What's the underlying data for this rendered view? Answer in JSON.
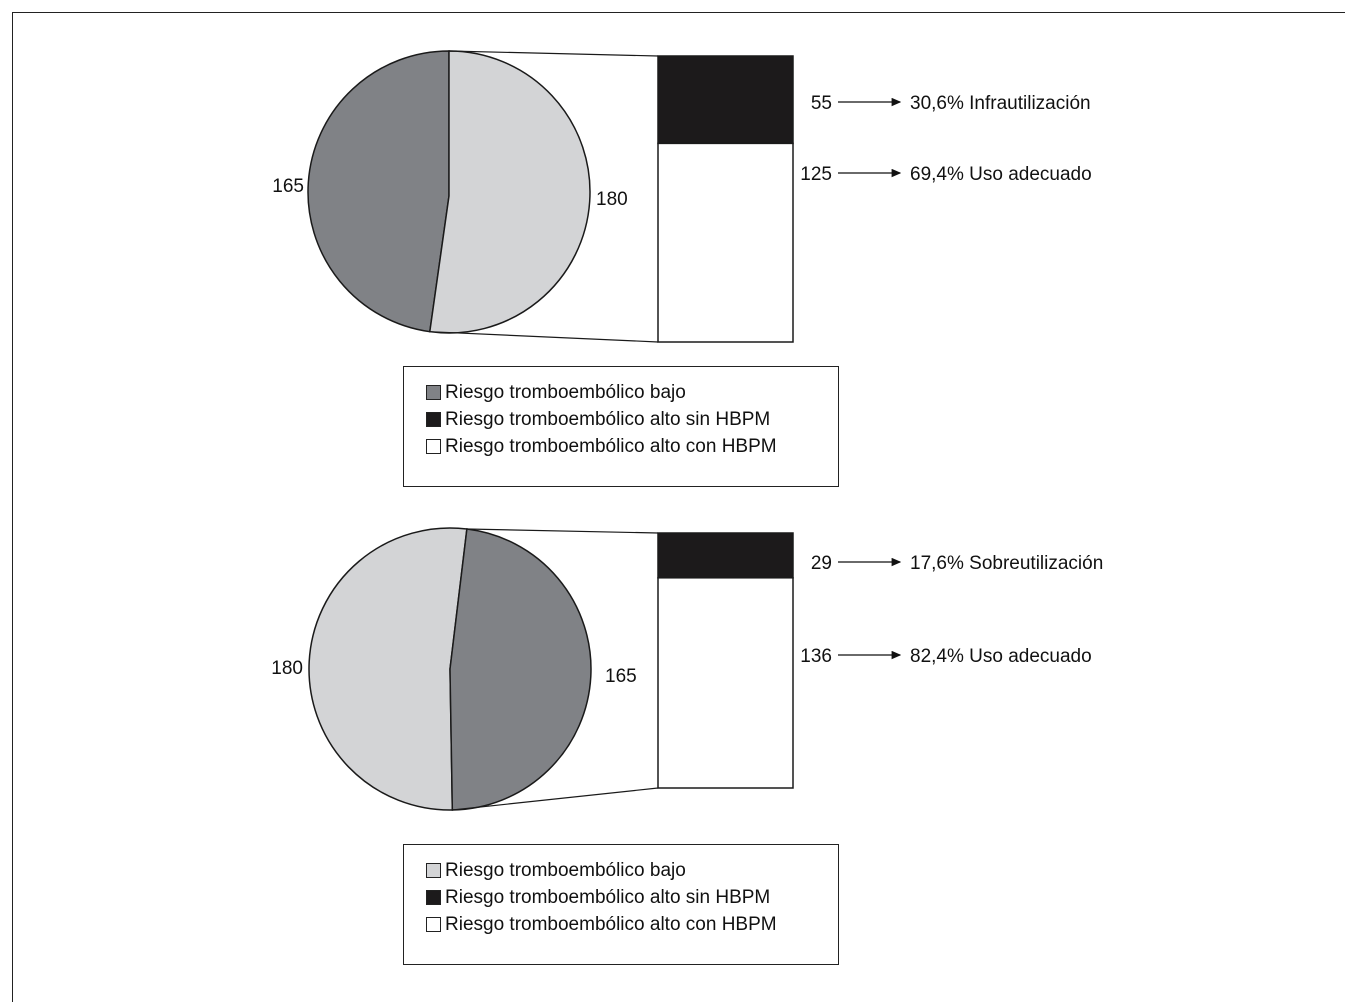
{
  "colors": {
    "dark_grey": "#808286",
    "light_grey": "#d3d4d6",
    "black": "#1c1a1b",
    "white": "#ffffff"
  },
  "chart_data": [
    {
      "type": "pie",
      "slices": [
        {
          "label": "165",
          "value": 165,
          "legend_index": 0,
          "color": "#808286"
        },
        {
          "label": "180",
          "value": 180,
          "color": "#d3d4d6",
          "exploded": true
        }
      ],
      "breakdown": [
        {
          "value": 55,
          "label": "55",
          "annotation": "30,6% Infrautilización",
          "color": "#1c1a1b",
          "legend_index": 1
        },
        {
          "value": 125,
          "label": "125",
          "annotation": "69,4% Uso adecuado",
          "color": "#ffffff",
          "legend_index": 2
        }
      ],
      "legend": [
        {
          "label": "Riesgo tromboembólico bajo",
          "color": "#808286"
        },
        {
          "label": "Riesgo tromboembólico alto sin HBPM",
          "color": "#1c1a1b"
        },
        {
          "label": "Riesgo tromboembólico alto con HBPM",
          "color": "#ffffff"
        }
      ]
    },
    {
      "type": "pie",
      "slices": [
        {
          "label": "180",
          "value": 180,
          "legend_index": 0,
          "color": "#d3d4d6"
        },
        {
          "label": "165",
          "value": 165,
          "color": "#808286",
          "exploded": true
        }
      ],
      "breakdown": [
        {
          "value": 29,
          "label": "29",
          "annotation": "17,6% Sobreutilización",
          "color": "#1c1a1b",
          "legend_index": 1
        },
        {
          "value": 136,
          "label": "136",
          "annotation": "82,4% Uso adecuado",
          "color": "#ffffff",
          "legend_index": 2
        }
      ],
      "legend": [
        {
          "label": "Riesgo tromboembólico bajo",
          "color": "#d3d4d6"
        },
        {
          "label": "Riesgo tromboembólico alto sin HBPM",
          "color": "#1c1a1b"
        },
        {
          "label": "Riesgo tromboembólico alto con HBPM",
          "color": "#ffffff"
        }
      ]
    }
  ]
}
